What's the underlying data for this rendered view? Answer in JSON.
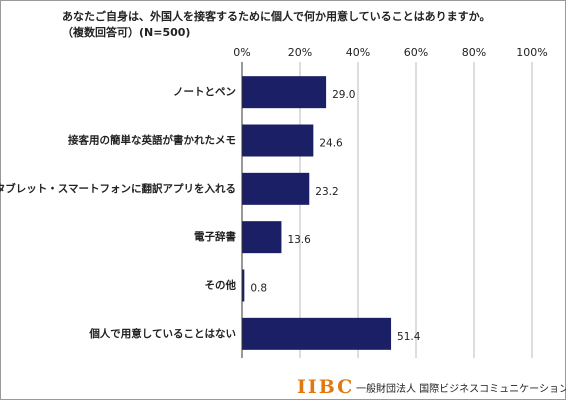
{
  "chart_data": {
    "type": "hbar",
    "title": "あなたご自身は、外国人を接客するために個人で何か用意していることはありますか。",
    "subtitle": "（複数回答可）(N=500)",
    "categories": [
      "ノートとペン",
      "接客用の簡単な英語が書かれたメモ",
      "タブレット・スマートフォンに翻訳アプリを入れる",
      "電子辞書",
      "その他",
      "個人で用意していることはない"
    ],
    "values": [
      29.0,
      24.6,
      23.2,
      13.6,
      0.8,
      51.4
    ],
    "value_labels": [
      "29.0",
      "24.6",
      "23.2",
      "13.6",
      "0.8",
      "51.4"
    ],
    "color": "#1b1f66",
    "xlim": [
      0,
      100
    ],
    "xticks": [
      {
        "value": 0,
        "label": "0%"
      },
      {
        "value": 20,
        "label": "20%"
      },
      {
        "value": 40,
        "label": "40%"
      },
      {
        "value": 60,
        "label": "60%"
      },
      {
        "value": 80,
        "label": "80%"
      },
      {
        "value": 100,
        "label": "100%"
      }
    ],
    "grid": true
  },
  "logo": {
    "brand": "IIBC",
    "org": "一般財団法人 国際ビジネスコミュニケーション協会"
  }
}
